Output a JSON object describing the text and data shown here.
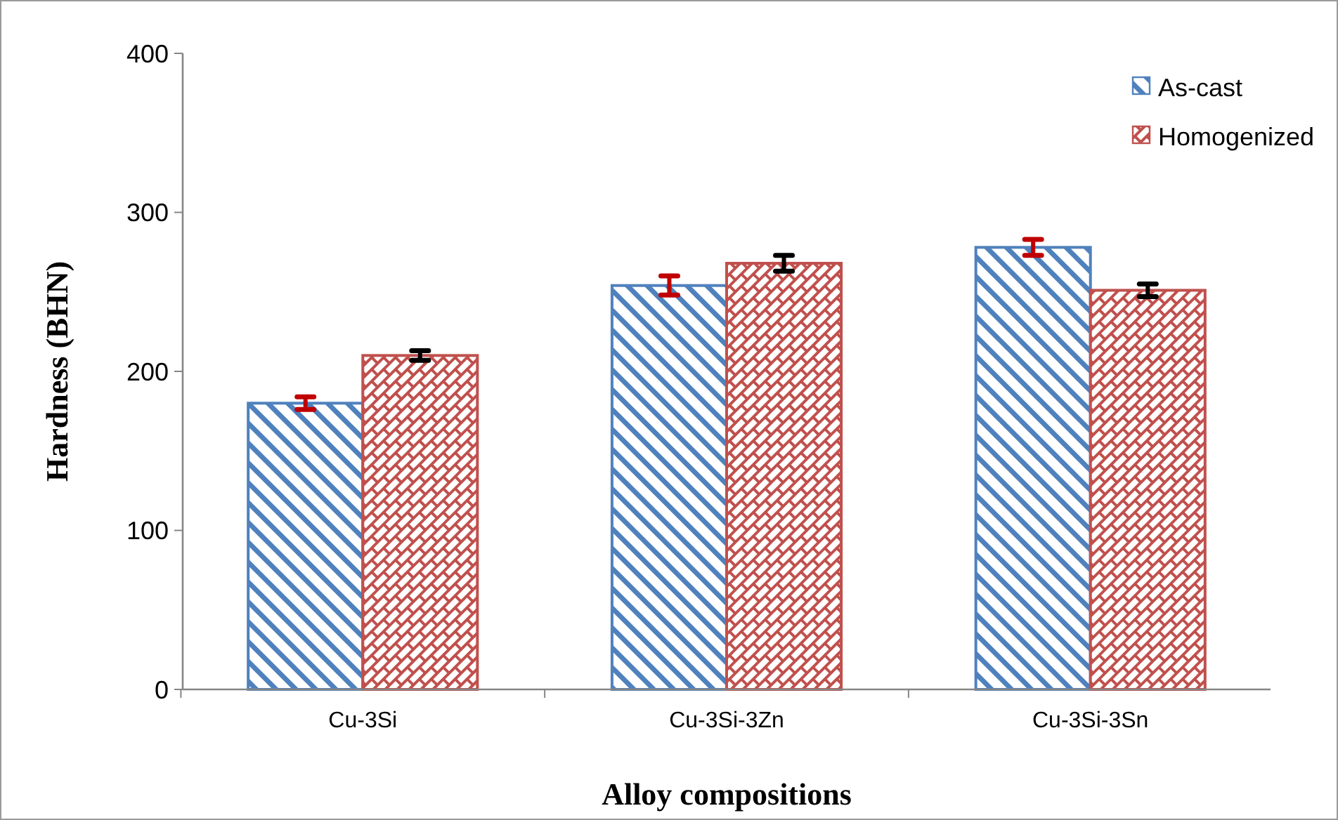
{
  "chart_data": {
    "type": "bar",
    "xlabel": "Alloy compositions",
    "ylabel": "Hardness (BHN)",
    "categories": [
      "Cu-3Si",
      "Cu-3Si-3Zn",
      "Cu-3Si-3Sn"
    ],
    "series": [
      {
        "name": "As-cast",
        "color": "#4f81bd",
        "values": [
          180,
          254,
          278
        ],
        "errors": [
          4,
          6,
          5
        ]
      },
      {
        "name": "Homogenized",
        "color": "#c0504d",
        "values": [
          210,
          268,
          251
        ],
        "errors": [
          3,
          5,
          4
        ]
      }
    ],
    "ylim": [
      0,
      400
    ],
    "yticks": [
      0,
      100,
      200,
      300,
      400
    ],
    "legend": "top right"
  }
}
